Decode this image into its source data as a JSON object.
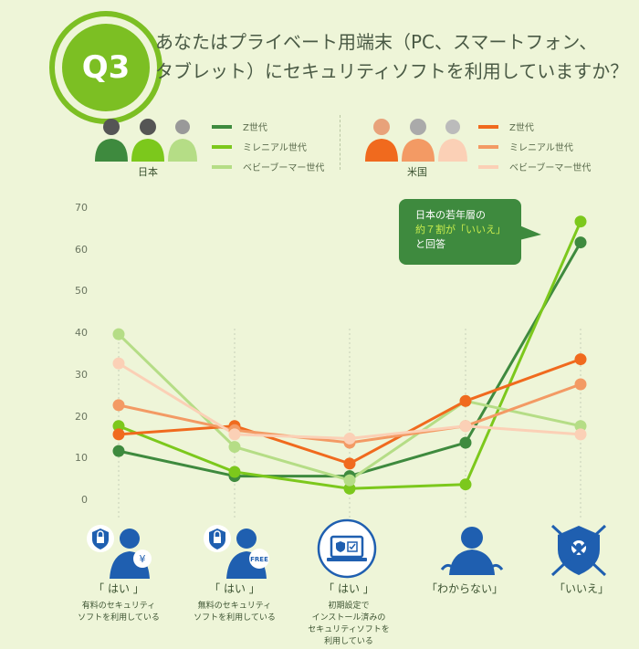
{
  "header": {
    "badge": "Q3",
    "question_line1": "あなたはプライベート用端末（PC、スマートフォン、",
    "question_line2": "タブレット）にセキュリティソフトを利用していますか？"
  },
  "legend": {
    "japan": {
      "country": "日本",
      "items": [
        "Z世代",
        "ミレニアル世代",
        "ベビーブーマー世代"
      ]
    },
    "us": {
      "country": "米国",
      "items": [
        "Z世代",
        "ミレニアル世代",
        "ベビーブーマー世代"
      ]
    }
  },
  "callout": {
    "line1": "日本の若年層の",
    "line2": "約７割が「いいえ」",
    "line3": "と回答"
  },
  "categories": [
    {
      "answer": "「 はい 」",
      "detail1": "有料のセキュリティ",
      "detail2": "ソフトを利用している",
      "detail3": "",
      "detail4": ""
    },
    {
      "answer": "「 はい 」",
      "detail1": "無料のセキュリティ",
      "detail2": "ソフトを利用している",
      "detail3": "",
      "detail4": ""
    },
    {
      "answer": "「 はい 」",
      "detail1": "初期設定で",
      "detail2": "インストール済みの",
      "detail3": "セキュリティソフトを",
      "detail4": "利用している"
    },
    {
      "answer": "「わからない」",
      "detail1": "",
      "detail2": "",
      "detail3": "",
      "detail4": ""
    },
    {
      "answer": "「いいえ」",
      "detail1": "",
      "detail2": "",
      "detail3": "",
      "detail4": ""
    }
  ],
  "icon_labels": {
    "yen": "¥",
    "free": "FREE"
  },
  "chart_data": {
    "type": "line",
    "categories": [
      "はい（有料）",
      "はい（無料）",
      "はい（初期設定）",
      "わからない",
      "いいえ"
    ],
    "ylim": [
      0,
      70
    ],
    "yticks": [
      0,
      10,
      20,
      30,
      40,
      50,
      60,
      70
    ],
    "series": [
      {
        "name": "日本 Z世代",
        "color": "#3e8a3e",
        "values": [
          12,
          6,
          6,
          14,
          62
        ]
      },
      {
        "name": "日本 ミレニアル世代",
        "color": "#7cc81c",
        "values": [
          18,
          7,
          3,
          4,
          67
        ]
      },
      {
        "name": "日本 ベビーブーマー世代",
        "color": "#b5dd86",
        "values": [
          40,
          13,
          5,
          24,
          18
        ]
      },
      {
        "name": "米国 Z世代",
        "color": "#f06a1e",
        "values": [
          16,
          18,
          9,
          24,
          34
        ]
      },
      {
        "name": "米国 ミレニアル世代",
        "color": "#f39a64",
        "values": [
          23,
          17,
          14,
          18,
          28
        ]
      },
      {
        "name": "米国 ベビーブーマー世代",
        "color": "#fbd0b6",
        "values": [
          33,
          16,
          15,
          18,
          16
        ]
      }
    ]
  }
}
